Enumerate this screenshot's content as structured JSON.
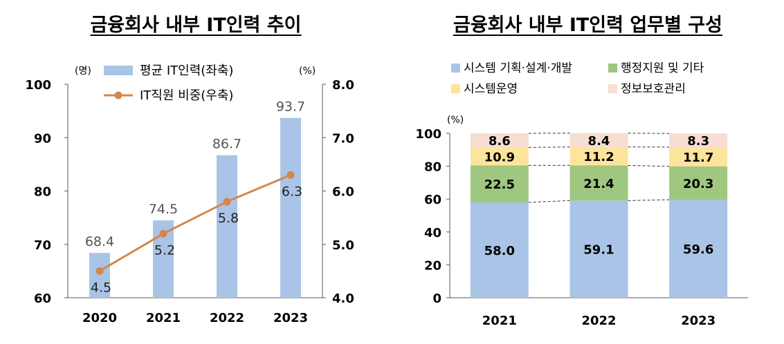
{
  "chart_data": [
    {
      "type": "bar",
      "title": "금융회사 내부 IT인력 추이",
      "categories": [
        "2020",
        "2021",
        "2022",
        "2023"
      ],
      "series": [
        {
          "name": "평균 IT인력(좌축)",
          "type": "bar",
          "axis": "left",
          "values": [
            68.4,
            74.5,
            86.7,
            93.7
          ],
          "color": "#a9c4e6"
        },
        {
          "name": "IT직원 비중(우축)",
          "type": "line",
          "axis": "right",
          "values": [
            4.5,
            5.2,
            5.8,
            6.3
          ],
          "color": "#d4874a"
        }
      ],
      "y_left": {
        "unit": "(명)",
        "range": [
          60,
          100
        ],
        "ticks": [
          "60",
          "70",
          "80",
          "90",
          "100"
        ]
      },
      "y_right": {
        "unit": "(%)",
        "range": [
          4.0,
          8.0
        ],
        "ticks": [
          "4.0",
          "5.0",
          "6.0",
          "7.0",
          "8.0"
        ]
      },
      "bar_labels": [
        "68.4",
        "74.5",
        "86.7",
        "93.7"
      ],
      "line_labels": [
        "4.5",
        "5.2",
        "5.8",
        "6.3"
      ],
      "legend_position": "top-left",
      "grid": false
    },
    {
      "type": "bar",
      "stacked": true,
      "title": "금융회사 내부 IT인력 업무별 구성",
      "categories": [
        "2021",
        "2022",
        "2023"
      ],
      "series": [
        {
          "name": "시스템 기획·설계·개발",
          "values": [
            58.0,
            59.1,
            59.6
          ],
          "labels": [
            "58.0",
            "59.1",
            "59.6"
          ],
          "color": "#a9c4e6"
        },
        {
          "name": "행정지원 및 기타",
          "values": [
            22.5,
            21.4,
            20.3
          ],
          "labels": [
            "22.5",
            "21.4",
            "20.3"
          ],
          "color": "#9fc780"
        },
        {
          "name": "시스템운영",
          "values": [
            10.9,
            11.2,
            11.7
          ],
          "labels": [
            "10.9",
            "11.2",
            "11.7"
          ],
          "color": "#fde49c"
        },
        {
          "name": "정보보호관리",
          "values": [
            8.6,
            8.4,
            8.3
          ],
          "labels": [
            "8.6",
            "8.4",
            "8.3"
          ],
          "color": "#f6ded3"
        }
      ],
      "y": {
        "unit": "(%)",
        "range": [
          0,
          100
        ],
        "ticks": [
          "0",
          "20",
          "40",
          "60",
          "80",
          "100"
        ]
      },
      "legend_position": "top",
      "grid": false
    }
  ]
}
